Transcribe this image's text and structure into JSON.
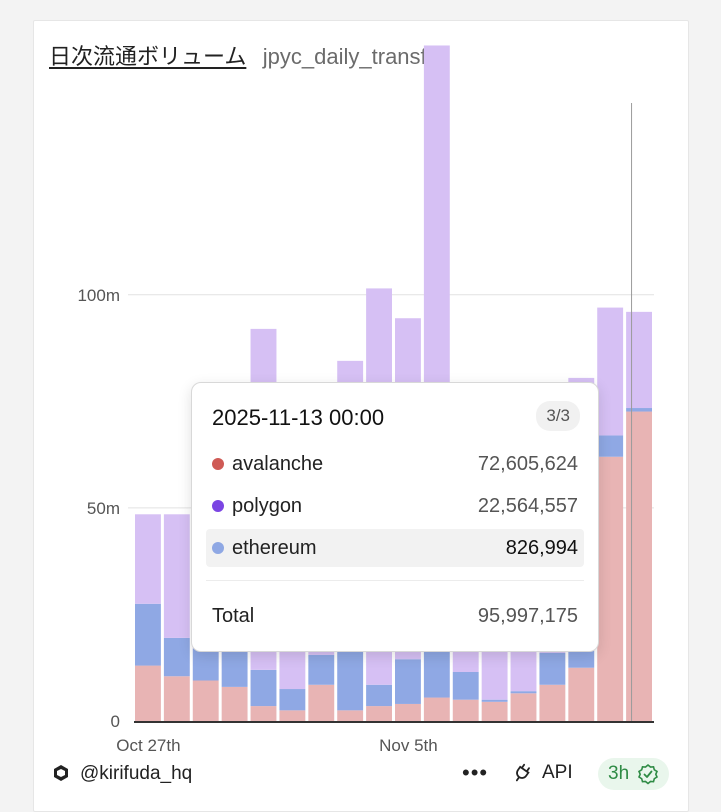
{
  "header": {
    "title": "日次流通ボリューム",
    "query_name": "jpyc_daily_transfer"
  },
  "chart_data": {
    "type": "bar",
    "stacked": true,
    "y_ticks": [
      "0",
      "50m",
      "100m"
    ],
    "ylim": [
      0,
      145000000
    ],
    "x_tick_labels": [
      {
        "label": "Oct 27th",
        "index": 0
      },
      {
        "label": "Nov 5th",
        "index": 9
      }
    ],
    "grid": true,
    "series": [
      {
        "name": "avalanche",
        "color": "#e8b4b4",
        "values": [
          13,
          10.5,
          9.5,
          8,
          3.5,
          2.5,
          8.5,
          2.5,
          3.5,
          4,
          5.5,
          5,
          4.5,
          6.5,
          8.5,
          12.5,
          62,
          72.605624
        ]
      },
      {
        "name": "ethereum",
        "color": "#8fa8e4",
        "values": [
          14.5,
          9,
          7.5,
          8.5,
          8.5,
          5,
          7,
          15,
          5,
          10.5,
          11,
          6.5,
          0.5,
          0.5,
          7.5,
          4,
          5,
          0.826994
        ]
      },
      {
        "name": "polygon",
        "color": "#d6c0f4",
        "values": [
          21,
          29,
          53,
          32,
          80,
          70,
          47,
          67,
          93,
          80,
          142,
          54,
          34,
          52,
          42,
          64,
          30,
          22.564557
        ]
      }
    ],
    "value_unit_multiplier": 1000000,
    "hover_index": 17
  },
  "tooltip": {
    "date": "2025-11-13 00:00",
    "page": "3/3",
    "rows": [
      {
        "name": "avalanche",
        "value": "72,605,624",
        "color": "#cf5a55",
        "highlight": false
      },
      {
        "name": "polygon",
        "value": "22,564,557",
        "color": "#7b45e3",
        "highlight": false
      },
      {
        "name": "ethereum",
        "value": "826,994",
        "color": "#8fa8e4",
        "highlight": true
      }
    ],
    "total_label": "Total",
    "total_value": "95,997,175"
  },
  "footer": {
    "user": "@kirifuda_hq",
    "more_label": "•••",
    "api_label": "API",
    "freshness": "3h"
  }
}
